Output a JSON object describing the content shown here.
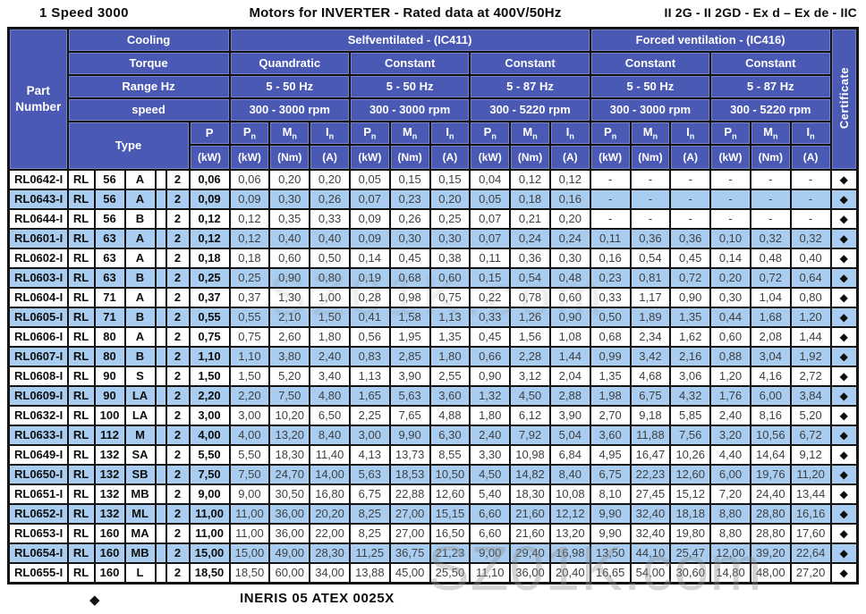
{
  "title": {
    "left": "1 Speed 3000",
    "center": "Motors for INVERTER - Rated data at 400V/50Hz",
    "right": "II 2G - II 2GD - Ex d – Ex de - IIC"
  },
  "header": {
    "part_number": "Part Number",
    "cooling_label": "Cooling",
    "torque_label": "Torque",
    "range_label": "Range Hz",
    "speed_label": "speed",
    "type_label": "Type",
    "certificate_label": "Certificate",
    "selfventilated": "Selfventilated - (IC411)",
    "forced": "Forced ventilation - (IC416)",
    "groups": [
      {
        "torque": "Quandratic",
        "range": "5 - 50 Hz",
        "speed": "300 - 3000 rpm"
      },
      {
        "torque": "Constant",
        "range": "5 - 50 Hz",
        "speed": "300 - 3000 rpm"
      },
      {
        "torque": "Constant",
        "range": "5 - 87 Hz",
        "speed": "300 - 5220 rpm"
      },
      {
        "torque": "Constant",
        "range": "5 - 50 Hz",
        "speed": "300 - 3000 rpm"
      },
      {
        "torque": "Constant",
        "range": "5 - 87 Hz",
        "speed": "300 - 5220 rpm"
      }
    ],
    "p_sym": "P",
    "p_unit": "(kW)",
    "col_syms": [
      {
        "sym": "P",
        "sub": "n",
        "unit": "(kW)"
      },
      {
        "sym": "M",
        "sub": "n",
        "unit": "(Nm)"
      },
      {
        "sym": "I",
        "sub": "n",
        "unit": "(A)"
      }
    ]
  },
  "symbols": {
    "diamond": "◆"
  },
  "rows": [
    {
      "part": "RL0642-I",
      "type": [
        "RL",
        "56",
        "A",
        "",
        "2"
      ],
      "p": "0,06",
      "values": [
        "0,06",
        "0,20",
        "0,20",
        "0,05",
        "0,15",
        "0,15",
        "0,04",
        "0,12",
        "0,12",
        "-",
        "-",
        "-",
        "-",
        "-",
        "-"
      ]
    },
    {
      "part": "RL0643-I",
      "type": [
        "RL",
        "56",
        "A",
        "",
        "2"
      ],
      "p": "0,09",
      "values": [
        "0,09",
        "0,30",
        "0,26",
        "0,07",
        "0,23",
        "0,20",
        "0,05",
        "0,18",
        "0,16",
        "-",
        "-",
        "-",
        "-",
        "-",
        "-"
      ]
    },
    {
      "part": "RL0644-I",
      "type": [
        "RL",
        "56",
        "B",
        "",
        "2"
      ],
      "p": "0,12",
      "values": [
        "0,12",
        "0,35",
        "0,33",
        "0,09",
        "0,26",
        "0,25",
        "0,07",
        "0,21",
        "0,20",
        "-",
        "-",
        "-",
        "-",
        "-",
        "-"
      ]
    },
    {
      "part": "RL0601-I",
      "type": [
        "RL",
        "63",
        "A",
        "",
        "2"
      ],
      "p": "0,12",
      "values": [
        "0,12",
        "0,40",
        "0,40",
        "0,09",
        "0,30",
        "0,30",
        "0,07",
        "0,24",
        "0,24",
        "0,11",
        "0,36",
        "0,36",
        "0,10",
        "0,32",
        "0,32"
      ]
    },
    {
      "part": "RL0602-I",
      "type": [
        "RL",
        "63",
        "A",
        "",
        "2"
      ],
      "p": "0,18",
      "values": [
        "0,18",
        "0,60",
        "0,50",
        "0,14",
        "0,45",
        "0,38",
        "0,11",
        "0,36",
        "0,30",
        "0,16",
        "0,54",
        "0,45",
        "0,14",
        "0,48",
        "0,40"
      ]
    },
    {
      "part": "RL0603-I",
      "type": [
        "RL",
        "63",
        "B",
        "",
        "2"
      ],
      "p": "0,25",
      "values": [
        "0,25",
        "0,90",
        "0,80",
        "0,19",
        "0,68",
        "0,60",
        "0,15",
        "0,54",
        "0,48",
        "0,23",
        "0,81",
        "0,72",
        "0,20",
        "0,72",
        "0,64"
      ]
    },
    {
      "part": "RL0604-I",
      "type": [
        "RL",
        "71",
        "A",
        "",
        "2"
      ],
      "p": "0,37",
      "values": [
        "0,37",
        "1,30",
        "1,00",
        "0,28",
        "0,98",
        "0,75",
        "0,22",
        "0,78",
        "0,60",
        "0,33",
        "1,17",
        "0,90",
        "0,30",
        "1,04",
        "0,80"
      ]
    },
    {
      "part": "RL0605-I",
      "type": [
        "RL",
        "71",
        "B",
        "",
        "2"
      ],
      "p": "0,55",
      "values": [
        "0,55",
        "2,10",
        "1,50",
        "0,41",
        "1,58",
        "1,13",
        "0,33",
        "1,26",
        "0,90",
        "0,50",
        "1,89",
        "1,35",
        "0,44",
        "1,68",
        "1,20"
      ]
    },
    {
      "part": "RL0606-I",
      "type": [
        "RL",
        "80",
        "A",
        "",
        "2"
      ],
      "p": "0,75",
      "values": [
        "0,75",
        "2,60",
        "1,80",
        "0,56",
        "1,95",
        "1,35",
        "0,45",
        "1,56",
        "1,08",
        "0,68",
        "2,34",
        "1,62",
        "0,60",
        "2,08",
        "1,44"
      ]
    },
    {
      "part": "RL0607-I",
      "type": [
        "RL",
        "80",
        "B",
        "",
        "2"
      ],
      "p": "1,10",
      "values": [
        "1,10",
        "3,80",
        "2,40",
        "0,83",
        "2,85",
        "1,80",
        "0,66",
        "2,28",
        "1,44",
        "0,99",
        "3,42",
        "2,16",
        "0,88",
        "3,04",
        "1,92"
      ]
    },
    {
      "part": "RL0608-I",
      "type": [
        "RL",
        "90",
        "S",
        "",
        "2"
      ],
      "p": "1,50",
      "values": [
        "1,50",
        "5,20",
        "3,40",
        "1,13",
        "3,90",
        "2,55",
        "0,90",
        "3,12",
        "2,04",
        "1,35",
        "4,68",
        "3,06",
        "1,20",
        "4,16",
        "2,72"
      ]
    },
    {
      "part": "RL0609-I",
      "type": [
        "RL",
        "90",
        "LA",
        "",
        "2"
      ],
      "p": "2,20",
      "values": [
        "2,20",
        "7,50",
        "4,80",
        "1,65",
        "5,63",
        "3,60",
        "1,32",
        "4,50",
        "2,88",
        "1,98",
        "6,75",
        "4,32",
        "1,76",
        "6,00",
        "3,84"
      ]
    },
    {
      "part": "RL0632-I",
      "type": [
        "RL",
        "100",
        "LA",
        "",
        "2"
      ],
      "p": "3,00",
      "values": [
        "3,00",
        "10,20",
        "6,50",
        "2,25",
        "7,65",
        "4,88",
        "1,80",
        "6,12",
        "3,90",
        "2,70",
        "9,18",
        "5,85",
        "2,40",
        "8,16",
        "5,20"
      ]
    },
    {
      "part": "RL0633-I",
      "type": [
        "RL",
        "112",
        "M",
        "",
        "2"
      ],
      "p": "4,00",
      "values": [
        "4,00",
        "13,20",
        "8,40",
        "3,00",
        "9,90",
        "6,30",
        "2,40",
        "7,92",
        "5,04",
        "3,60",
        "11,88",
        "7,56",
        "3,20",
        "10,56",
        "6,72"
      ]
    },
    {
      "part": "RL0649-I",
      "type": [
        "RL",
        "132",
        "SA",
        "",
        "2"
      ],
      "p": "5,50",
      "values": [
        "5,50",
        "18,30",
        "11,40",
        "4,13",
        "13,73",
        "8,55",
        "3,30",
        "10,98",
        "6,84",
        "4,95",
        "16,47",
        "10,26",
        "4,40",
        "14,64",
        "9,12"
      ]
    },
    {
      "part": "RL0650-I",
      "type": [
        "RL",
        "132",
        "SB",
        "",
        "2"
      ],
      "p": "7,50",
      "values": [
        "7,50",
        "24,70",
        "14,00",
        "5,63",
        "18,53",
        "10,50",
        "4,50",
        "14,82",
        "8,40",
        "6,75",
        "22,23",
        "12,60",
        "6,00",
        "19,76",
        "11,20"
      ]
    },
    {
      "part": "RL0651-I",
      "type": [
        "RL",
        "132",
        "MB",
        "",
        "2"
      ],
      "p": "9,00",
      "values": [
        "9,00",
        "30,50",
        "16,80",
        "6,75",
        "22,88",
        "12,60",
        "5,40",
        "18,30",
        "10,08",
        "8,10",
        "27,45",
        "15,12",
        "7,20",
        "24,40",
        "13,44"
      ]
    },
    {
      "part": "RL0652-I",
      "type": [
        "RL",
        "132",
        "ML",
        "",
        "2"
      ],
      "p": "11,00",
      "values": [
        "11,00",
        "36,00",
        "20,20",
        "8,25",
        "27,00",
        "15,15",
        "6,60",
        "21,60",
        "12,12",
        "9,90",
        "32,40",
        "18,18",
        "8,80",
        "28,80",
        "16,16"
      ]
    },
    {
      "part": "RL0653-I",
      "type": [
        "RL",
        "160",
        "MA",
        "",
        "2"
      ],
      "p": "11,00",
      "values": [
        "11,00",
        "36,00",
        "22,00",
        "8,25",
        "27,00",
        "16,50",
        "6,60",
        "21,60",
        "13,20",
        "9,90",
        "32,40",
        "19,80",
        "8,80",
        "28,80",
        "17,60"
      ]
    },
    {
      "part": "RL0654-I",
      "type": [
        "RL",
        "160",
        "MB",
        "",
        "2"
      ],
      "p": "15,00",
      "values": [
        "15,00",
        "49,00",
        "28,30",
        "11,25",
        "36,75",
        "21,23",
        "9,00",
        "29,40",
        "16,98",
        "13,50",
        "44,10",
        "25,47",
        "12,00",
        "39,20",
        "22,64"
      ]
    },
    {
      "part": "RL0655-I",
      "type": [
        "RL",
        "160",
        "L",
        "",
        "2"
      ],
      "p": "18,50",
      "values": [
        "18,50",
        "60,00",
        "34,00",
        "13,88",
        "45,00",
        "25,50",
        "11,10",
        "36,00",
        "20,40",
        "16,65",
        "54,00",
        "30,60",
        "14,80",
        "48,00",
        "27,20"
      ]
    }
  ],
  "footer": {
    "text": "INERIS 05 ATEX 0025X"
  },
  "watermark": "SZ01K.com",
  "colors": {
    "header_blue": "#4a59b4",
    "row_alt": "#a9cdf0",
    "border": "#141414",
    "certificate_diamond": "#111111"
  }
}
